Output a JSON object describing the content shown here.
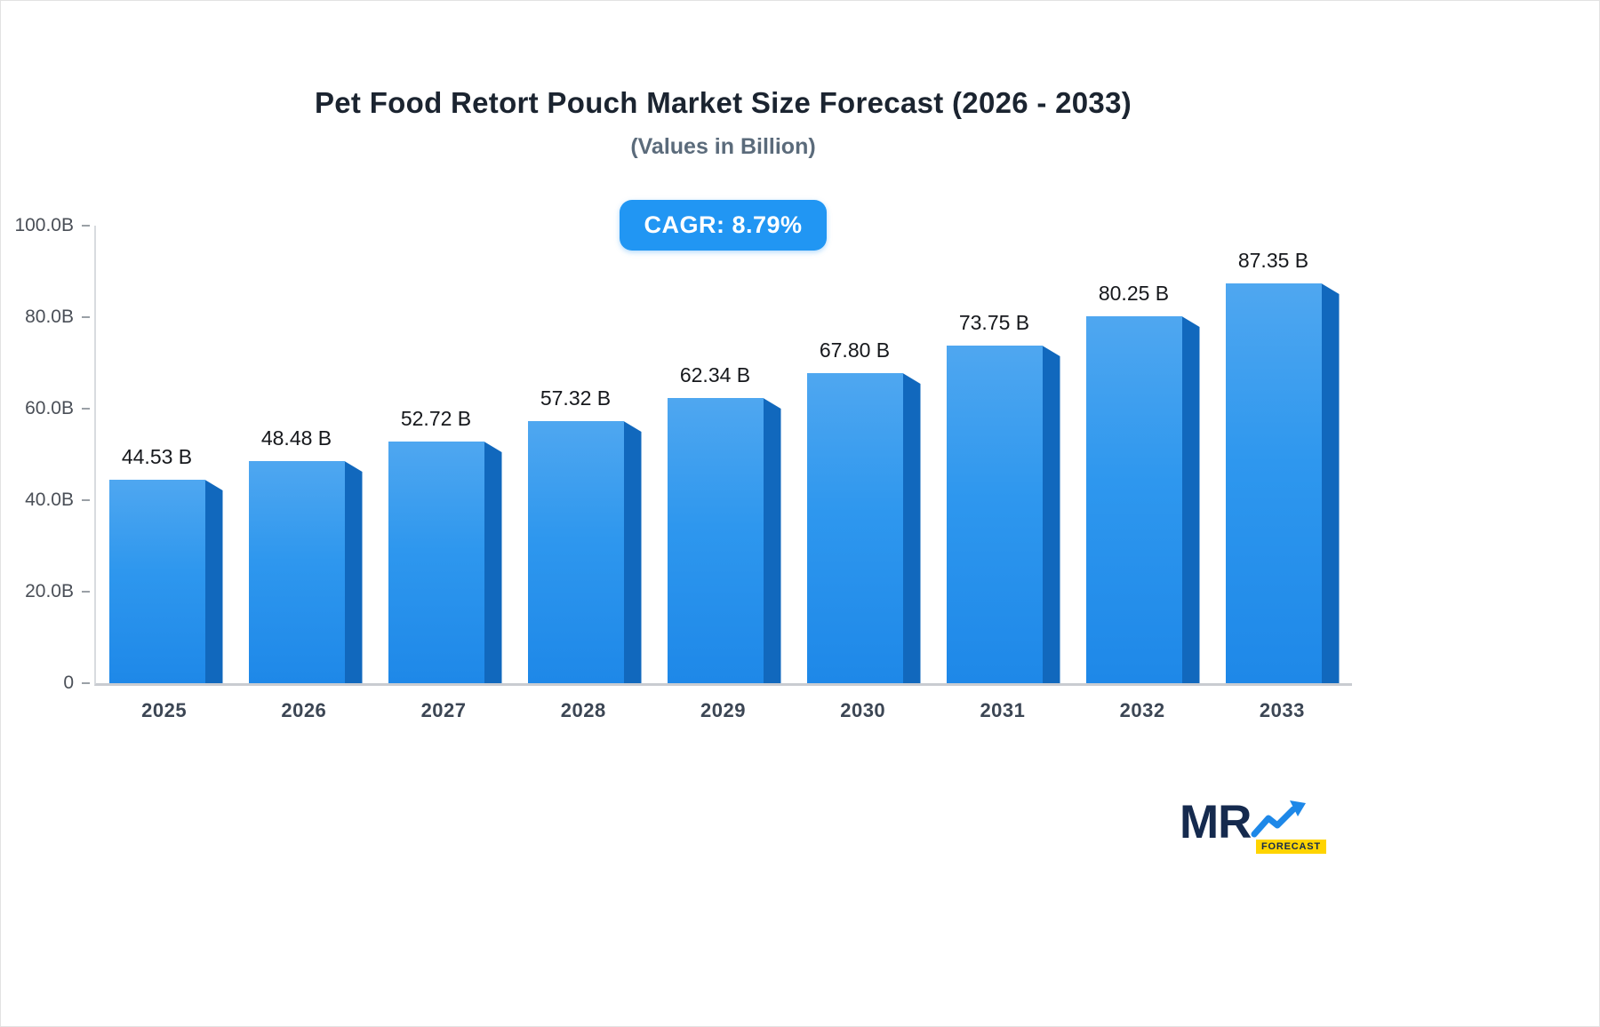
{
  "header": {
    "title": "Pet Food Retort Pouch Market Size Forecast (2026 - 2033)",
    "subtitle": "(Values in Billion)",
    "cagr_label": "CAGR: 8.79%"
  },
  "chart_data": {
    "type": "bar",
    "title": "Pet Food Retort Pouch Market Size Forecast (2026 - 2033)",
    "subtitle": "(Values in Billion)",
    "cagr_percent": 8.79,
    "categories": [
      "2025",
      "2026",
      "2027",
      "2028",
      "2029",
      "2030",
      "2031",
      "2032",
      "2033"
    ],
    "values": [
      44.53,
      48.48,
      52.72,
      57.32,
      62.34,
      67.8,
      73.75,
      80.25,
      87.35
    ],
    "value_labels": [
      "44.53 B",
      "48.48 B",
      "52.72 B",
      "57.32 B",
      "62.34 B",
      "67.80 B",
      "73.75 B",
      "80.25 B",
      "87.35 B"
    ],
    "xlabel": "",
    "ylabel": "",
    "ylim": [
      0,
      100
    ],
    "yticks": [
      {
        "value": 100,
        "label": "100.0B"
      },
      {
        "value": 80,
        "label": "80.0B"
      },
      {
        "value": 60,
        "label": "60.0B"
      },
      {
        "value": 40,
        "label": "40.0B"
      },
      {
        "value": 20,
        "label": "20.0B"
      },
      {
        "value": 0,
        "label": "0"
      }
    ],
    "grid": false,
    "legend": "none",
    "colors": {
      "accent": "#2196f3",
      "bar_gradient_top": "#4fa7f0",
      "bar_gradient_bottom": "#1e88e8",
      "bar_side": "#1168bd"
    }
  },
  "logo": {
    "brand": "MR",
    "tagline": "FORECAST",
    "colors": {
      "navy": "#152a4e",
      "yellow": "#ffd400",
      "arrow_blue": "#1e88e8"
    }
  }
}
